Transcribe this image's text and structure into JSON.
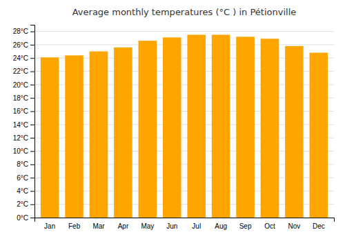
{
  "chart_data": {
    "type": "bar",
    "title": "Average monthly temperatures (°C ) in Pétionville",
    "categories": [
      "Jan",
      "Feb",
      "Mar",
      "Apr",
      "May",
      "Jun",
      "Jul",
      "Aug",
      "Sep",
      "Oct",
      "Nov",
      "Dec"
    ],
    "values": [
      24.1,
      24.4,
      25.0,
      25.6,
      26.6,
      27.1,
      27.5,
      27.5,
      27.2,
      26.9,
      25.8,
      24.8
    ],
    "color": "#FFA500",
    "ylim": [
      0,
      29
    ],
    "yticks": [
      {
        "value": 0,
        "label": "0°C"
      },
      {
        "value": 2,
        "label": "2°C"
      },
      {
        "value": 4,
        "label": "4°C"
      },
      {
        "value": 6,
        "label": "6°C"
      },
      {
        "value": 8,
        "label": "8°C"
      },
      {
        "value": 10,
        "label": "10°C"
      },
      {
        "value": 12,
        "label": "12°C"
      },
      {
        "value": 14,
        "label": "14°C"
      },
      {
        "value": 16,
        "label": "16°C"
      },
      {
        "value": 18,
        "label": "18°C"
      },
      {
        "value": 20,
        "label": "20°C"
      },
      {
        "value": 22,
        "label": "22°C"
      },
      {
        "value": 24,
        "label": "24°C"
      },
      {
        "value": 26,
        "label": "26°C"
      },
      {
        "value": 28,
        "label": "28°C"
      }
    ],
    "grid": true
  }
}
